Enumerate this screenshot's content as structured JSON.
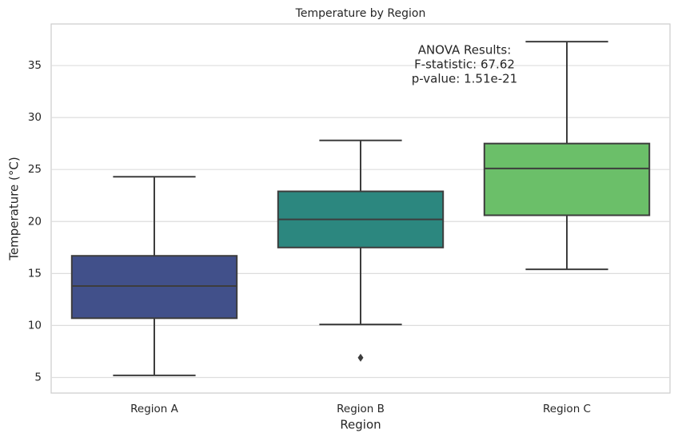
{
  "chart_data": {
    "type": "box",
    "title": "Temperature by Region",
    "x_label": "Region",
    "y_label": "Temperature (°C)",
    "categories": [
      "Region A",
      "Region B",
      "Region C"
    ],
    "colors": [
      "#41508a",
      "#2c877f",
      "#6bbf69"
    ],
    "boxes": [
      {
        "whislo": 5.2,
        "q1": 10.7,
        "med": 13.8,
        "q3": 16.7,
        "whishi": 24.3,
        "fliers": []
      },
      {
        "whislo": 10.1,
        "q1": 17.5,
        "med": 20.2,
        "q3": 22.9,
        "whishi": 27.8,
        "fliers": [
          6.9
        ]
      },
      {
        "whislo": 15.4,
        "q1": 20.6,
        "med": 25.1,
        "q3": 27.5,
        "whishi": 37.3,
        "fliers": []
      }
    ],
    "ylim": [
      3.5,
      39
    ],
    "yticks": [
      5,
      10,
      15,
      20,
      25,
      30,
      35
    ],
    "grid": true,
    "annotation": [
      "ANOVA Results:",
      "F-statistic: 67.62",
      "p-value: 1.51e-21"
    ]
  }
}
